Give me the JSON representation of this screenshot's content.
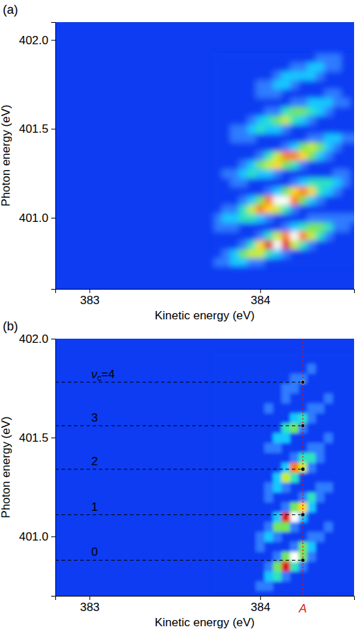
{
  "chart_data": [
    {
      "type": "heatmap",
      "panel_label": "(a)",
      "x_label": "Kinetic energy (eV)",
      "y_label": "Photon energy (eV)",
      "xlim": [
        382.8,
        384.55
      ],
      "ylim": [
        400.6,
        402.1
      ],
      "xticks": [
        383,
        384
      ],
      "yticks": [
        {
          "value": 401,
          "label": "401.0"
        },
        {
          "value": 401.5,
          "label": "401.5"
        },
        {
          "value": 402,
          "label": "402.0"
        }
      ],
      "zlim": [
        0,
        1
      ],
      "x": [
        383.75,
        383.8,
        383.85,
        383.9,
        383.95,
        384.0,
        384.05,
        384.1,
        384.15,
        384.2,
        384.25,
        384.3,
        384.35,
        384.4,
        384.45,
        384.5,
        384.55
      ],
      "y": [
        400.75,
        400.8,
        400.85,
        400.9,
        400.95,
        401.0,
        401.05,
        401.1,
        401.15,
        401.2,
        401.25,
        401.3,
        401.35,
        401.4,
        401.45,
        401.5,
        401.55,
        401.6,
        401.65,
        401.7,
        401.75,
        401.8,
        401.85,
        401.9
      ],
      "cells": [
        [
          0.1,
          0.1,
          0.2,
          0.2,
          0.1,
          0.1,
          0,
          0,
          0,
          0,
          0,
          0,
          0,
          0,
          0,
          0,
          0
        ],
        [
          0,
          0.1,
          0.2,
          0.4,
          0.5,
          0.5,
          0.3,
          0.2,
          0.1,
          0,
          0,
          0,
          0,
          0,
          0,
          0,
          0
        ],
        [
          0,
          0,
          0,
          0.1,
          0.3,
          0.6,
          0.8,
          0.9,
          0.8,
          0.5,
          0.3,
          0.1,
          0,
          0,
          0,
          0,
          0
        ],
        [
          0,
          0,
          0,
          0,
          0,
          0.1,
          0.3,
          0.5,
          0.7,
          0.9,
          0.7,
          0.5,
          0.3,
          0.1,
          0,
          0,
          0
        ],
        [
          0.1,
          0.1,
          0.1,
          0,
          0,
          0,
          0,
          0,
          0.1,
          0.2,
          0.3,
          0.4,
          0.4,
          0.3,
          0.1,
          0.1,
          0
        ],
        [
          0.1,
          0.2,
          0.2,
          0.3,
          0.3,
          0.2,
          0.1,
          0,
          0,
          0,
          0,
          0.1,
          0.1,
          0.1,
          0.1,
          0.1,
          0.1
        ],
        [
          0,
          0.1,
          0.1,
          0.3,
          0.5,
          0.7,
          0.6,
          0.5,
          0.3,
          0.1,
          0,
          0,
          0,
          0,
          0,
          0,
          0
        ],
        [
          0,
          0,
          0,
          0.1,
          0.2,
          0.4,
          0.7,
          0.9,
          0.9,
          0.7,
          0.4,
          0.2,
          0.1,
          0,
          0,
          0,
          0
        ],
        [
          0,
          0,
          0,
          0,
          0,
          0,
          0.1,
          0.2,
          0.4,
          0.6,
          0.7,
          0.6,
          0.3,
          0.2,
          0.1,
          0,
          0
        ],
        [
          0,
          0,
          0.1,
          0.1,
          0,
          0,
          0,
          0,
          0,
          0.1,
          0.2,
          0.3,
          0.3,
          0.3,
          0.2,
          0.1,
          0
        ],
        [
          0,
          0.1,
          0.1,
          0.2,
          0.3,
          0.2,
          0.2,
          0.1,
          0,
          0,
          0,
          0,
          0,
          0,
          0.1,
          0.1,
          0
        ],
        [
          0,
          0,
          0,
          0.1,
          0.2,
          0.4,
          0.5,
          0.6,
          0.4,
          0.3,
          0.1,
          0,
          0,
          0,
          0,
          0,
          0
        ],
        [
          0,
          0,
          0,
          0,
          0,
          0.1,
          0.3,
          0.5,
          0.7,
          0.7,
          0.6,
          0.4,
          0.2,
          0.1,
          0,
          0,
          0
        ],
        [
          0,
          0,
          0,
          0,
          0,
          0,
          0,
          0,
          0.1,
          0.2,
          0.4,
          0.5,
          0.4,
          0.2,
          0.1,
          0,
          0
        ],
        [
          0,
          0,
          0.1,
          0.1,
          0.1,
          0,
          0,
          0,
          0,
          0,
          0,
          0.1,
          0.1,
          0.2,
          0.2,
          0.1,
          0.1
        ],
        [
          0,
          0,
          0.1,
          0.1,
          0.2,
          0.3,
          0.2,
          0.2,
          0.1,
          0,
          0,
          0,
          0,
          0,
          0,
          0,
          0
        ],
        [
          0,
          0,
          0,
          0,
          0.1,
          0.2,
          0.3,
          0.4,
          0.5,
          0.3,
          0.2,
          0.1,
          0,
          0,
          0,
          0,
          0
        ],
        [
          0,
          0,
          0,
          0,
          0,
          0,
          0.1,
          0.1,
          0.3,
          0.4,
          0.4,
          0.3,
          0.2,
          0.1,
          0,
          0,
          0
        ],
        [
          0,
          0,
          0,
          0,
          0,
          0,
          0,
          0,
          0,
          0.1,
          0.1,
          0.2,
          0.2,
          0.2,
          0.1,
          0.1,
          0
        ],
        [
          0,
          0,
          0,
          0,
          0,
          0.1,
          0.1,
          0.1,
          0,
          0,
          0,
          0,
          0,
          0.1,
          0.1,
          0,
          0
        ],
        [
          0,
          0,
          0,
          0,
          0,
          0.1,
          0.1,
          0.2,
          0.2,
          0.1,
          0,
          0,
          0,
          0,
          0,
          0,
          0
        ],
        [
          0,
          0,
          0,
          0,
          0,
          0,
          0,
          0.1,
          0.2,
          0.2,
          0.2,
          0.2,
          0.1,
          0,
          0,
          0,
          0
        ],
        [
          0,
          0,
          0,
          0,
          0,
          0,
          0,
          0,
          0,
          0.1,
          0.1,
          0.2,
          0.2,
          0.1,
          0.1,
          0,
          0
        ],
        [
          0,
          0,
          0,
          0,
          0,
          0,
          0,
          0,
          0,
          0,
          0,
          0,
          0.1,
          0.1,
          0.1,
          0,
          0
        ]
      ]
    },
    {
      "type": "heatmap",
      "panel_label": "(b)",
      "x_label": "Kinetic energy (eV)",
      "y_label": "Photon energy (eV)",
      "xlim": [
        382.8,
        384.55
      ],
      "ylim": [
        400.7,
        402.0
      ],
      "xticks": [
        383,
        384
      ],
      "yticks": [
        {
          "value": 401,
          "label": "401.0"
        },
        {
          "value": 401.5,
          "label": "401.5"
        },
        {
          "value": 402,
          "label": "402.0"
        }
      ],
      "zlim": [
        0,
        1
      ],
      "x": [
        383.75,
        383.8,
        383.85,
        383.9,
        383.95,
        384.0,
        384.05,
        384.1,
        384.15,
        384.2,
        384.25,
        384.3,
        384.35,
        384.4,
        384.45,
        384.5,
        384.55
      ],
      "y": [
        400.75,
        400.8,
        400.85,
        400.9,
        400.95,
        401.0,
        401.05,
        401.1,
        401.15,
        401.2,
        401.25,
        401.3,
        401.35,
        401.4,
        401.45,
        401.5,
        401.55,
        401.6,
        401.65,
        401.7,
        401.75,
        401.8,
        401.85,
        401.9
      ],
      "cells": [
        [
          0,
          0,
          0,
          0,
          0,
          0.1,
          0.1,
          0,
          0,
          0,
          0,
          0,
          0,
          0,
          0,
          0,
          0
        ],
        [
          0,
          0,
          0,
          0,
          0,
          0,
          0.2,
          0.3,
          0.1,
          0,
          0,
          0,
          0,
          0,
          0,
          0,
          0
        ],
        [
          0,
          0,
          0,
          0,
          0,
          0,
          0.1,
          0.4,
          0.8,
          0.3,
          0.1,
          0,
          0,
          0,
          0,
          0,
          0
        ],
        [
          0,
          0,
          0,
          0,
          0,
          0,
          0,
          0.1,
          0.4,
          0.9,
          0.4,
          0.1,
          0,
          0,
          0,
          0,
          0
        ],
        [
          0,
          0,
          0,
          0,
          0,
          0.1,
          0,
          0,
          0,
          0.1,
          0.4,
          0.2,
          0,
          0,
          0,
          0,
          0
        ],
        [
          0,
          0,
          0,
          0,
          0,
          0.1,
          0.2,
          0.1,
          0,
          0,
          0,
          0.1,
          0.1,
          0,
          0,
          0,
          0
        ],
        [
          0,
          0,
          0,
          0,
          0,
          0,
          0.1,
          0.4,
          0.4,
          0.1,
          0,
          0,
          0,
          0.1,
          0,
          0,
          0
        ],
        [
          0,
          0,
          0,
          0,
          0,
          0,
          0,
          0.2,
          0.8,
          0.9,
          0.2,
          0,
          0,
          0,
          0,
          0,
          0
        ],
        [
          0,
          0,
          0,
          0,
          0,
          0,
          0,
          0,
          0.1,
          0.4,
          0.6,
          0.2,
          0,
          0,
          0,
          0,
          0
        ],
        [
          0,
          0,
          0,
          0,
          0,
          0,
          0.1,
          0,
          0,
          0,
          0.1,
          0.3,
          0.1,
          0,
          0,
          0,
          0
        ],
        [
          0,
          0,
          0,
          0,
          0,
          0,
          0.1,
          0.2,
          0.1,
          0,
          0,
          0,
          0.1,
          0.1,
          0,
          0,
          0
        ],
        [
          0,
          0,
          0,
          0,
          0,
          0,
          0,
          0.2,
          0.5,
          0.3,
          0,
          0,
          0,
          0,
          0,
          0,
          0
        ],
        [
          0,
          0,
          0,
          0,
          0,
          0,
          0,
          0,
          0.2,
          0.7,
          0.5,
          0.1,
          0,
          0,
          0,
          0,
          0
        ],
        [
          0,
          0,
          0,
          0,
          0,
          0,
          0,
          0,
          0,
          0.1,
          0.3,
          0.3,
          0.1,
          0,
          0,
          0,
          0
        ],
        [
          0,
          0,
          0,
          0,
          0,
          0,
          0.1,
          0.1,
          0,
          0,
          0,
          0.1,
          0.1,
          0,
          0,
          0,
          0
        ],
        [
          0,
          0,
          0,
          0,
          0,
          0,
          0,
          0.2,
          0.2,
          0,
          0,
          0,
          0,
          0.1,
          0,
          0,
          0
        ],
        [
          0,
          0,
          0,
          0,
          0,
          0,
          0,
          0,
          0.3,
          0.4,
          0.1,
          0,
          0,
          0,
          0,
          0,
          0
        ],
        [
          0,
          0,
          0,
          0,
          0,
          0,
          0,
          0,
          0,
          0.2,
          0.3,
          0.1,
          0,
          0,
          0,
          0,
          0
        ],
        [
          0,
          0,
          0,
          0,
          0,
          0,
          0.1,
          0,
          0,
          0,
          0,
          0.1,
          0.1,
          0,
          0,
          0,
          0
        ],
        [
          0,
          0,
          0,
          0,
          0,
          0,
          0,
          0,
          0.1,
          0,
          0,
          0,
          0,
          0.1,
          0,
          0,
          0
        ],
        [
          0,
          0,
          0,
          0,
          0,
          0,
          0,
          0,
          0.1,
          0.1,
          0,
          0,
          0,
          0,
          0,
          0,
          0
        ],
        [
          0,
          0,
          0,
          0,
          0,
          0,
          0,
          0,
          0,
          0.1,
          0.1,
          0,
          0,
          0,
          0,
          0,
          0
        ],
        [
          0,
          0,
          0,
          0,
          0,
          0,
          0,
          0,
          0,
          0,
          0,
          0.1,
          0,
          0,
          0,
          0,
          0
        ],
        [
          0,
          0,
          0,
          0,
          0,
          0,
          0,
          0,
          0,
          0,
          0,
          0,
          0,
          0,
          0,
          0,
          0
        ]
      ],
      "levels": [
        {
          "label": "0",
          "y": 400.88
        },
        {
          "label": "1",
          "y": 401.11
        },
        {
          "label": "2",
          "y": 401.34
        },
        {
          "label": "3",
          "y": 401.56
        },
        {
          "label": "νc=4",
          "y": 401.78
        }
      ],
      "marker_line": {
        "label": "A",
        "x": 384.25
      }
    }
  ]
}
